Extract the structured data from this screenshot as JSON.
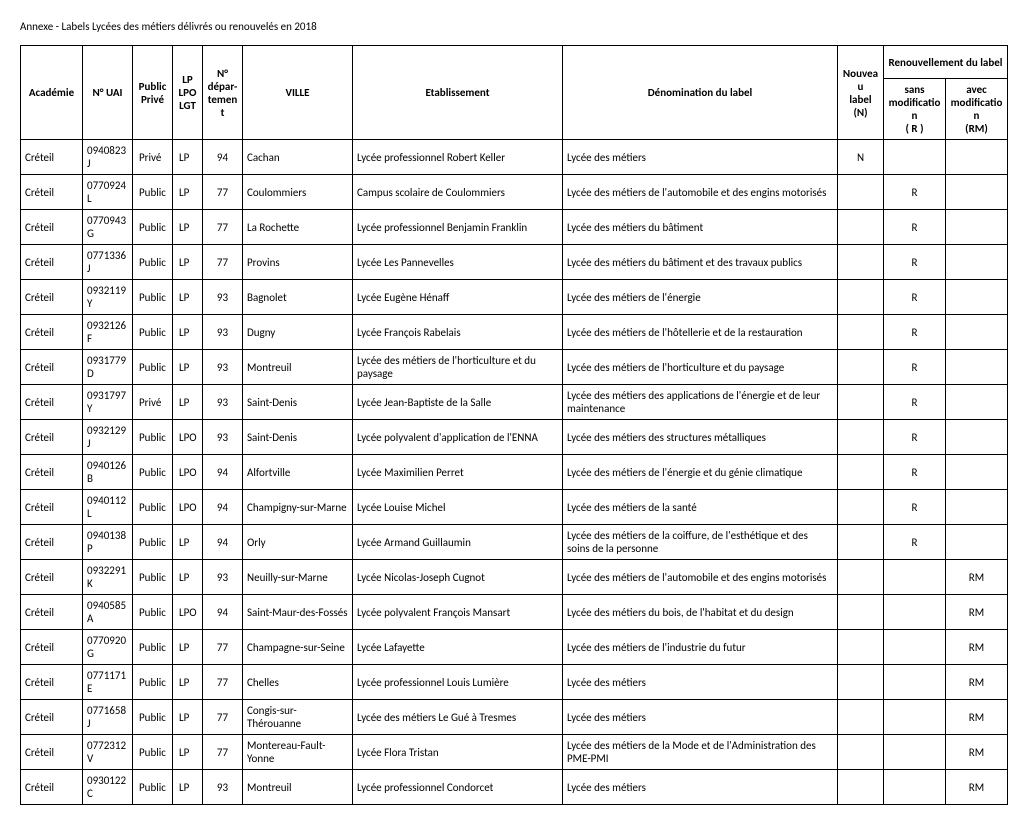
{
  "title": "Annexe - Labels Lycées des métiers délivrés ou renouvelés  en 2018",
  "columns": {
    "academie": "Académie",
    "uai": "N° UAI",
    "pubpriv": "Public\nPrivé",
    "type": "LP\nLPO\nLGT",
    "dept": "N°\ndépar-\ntement",
    "ville": "VILLE",
    "etab": "Etablissement",
    "denom": "Dénomination du label",
    "nouveau": "Nouveau\nlabel\n(N)",
    "renouv": "Renouvellement du label",
    "sans": "sans\nmodification\n( R )",
    "avec": "avec\nmodification\n(RM)"
  },
  "rows": [
    {
      "academie": "Créteil",
      "uai": "0940823J",
      "pubpriv": "Privé",
      "type": "LP",
      "dept": "94",
      "ville": "Cachan",
      "etab": "Lycée professionnel Robert Keller",
      "denom": "Lycée des métiers",
      "n": "N",
      "r": "",
      "rm": ""
    },
    {
      "academie": "Créteil",
      "uai": "0770924L",
      "pubpriv": "Public",
      "type": "LP",
      "dept": "77",
      "ville": "Coulommiers",
      "etab": "Campus scolaire de Coulommiers",
      "denom": "Lycée des métiers de l'automobile et des engins motorisés",
      "n": "",
      "r": "R",
      "rm": ""
    },
    {
      "academie": "Créteil",
      "uai": "0770943G",
      "pubpriv": "Public",
      "type": "LP",
      "dept": "77",
      "ville": "La Rochette",
      "etab": "Lycée professionnel  Benjamin Franklin",
      "denom": "Lycée des métiers du bâtiment",
      "n": "",
      "r": "R",
      "rm": ""
    },
    {
      "academie": "Créteil",
      "uai": "0771336J",
      "pubpriv": "Public",
      "type": "LP",
      "dept": "77",
      "ville": "Provins",
      "etab": "Lycée Les Pannevelles",
      "denom": "Lycée des métiers du bâtiment et des travaux publics",
      "n": "",
      "r": "R",
      "rm": ""
    },
    {
      "academie": "Créteil",
      "uai": "0932119Y",
      "pubpriv": "Public",
      "type": "LP",
      "dept": "93",
      "ville": "Bagnolet",
      "etab": "Lycée Eugène Hénaff",
      "denom": "Lycée des métiers de l'énergie",
      "n": "",
      "r": "R",
      "rm": ""
    },
    {
      "academie": "Créteil",
      "uai": "0932126F",
      "pubpriv": "Public",
      "type": "LP",
      "dept": "93",
      "ville": "Dugny",
      "etab": "Lycée François Rabelais",
      "denom": "Lycée des métiers de l'hôtellerie et de la restauration",
      "n": "",
      "r": "R",
      "rm": ""
    },
    {
      "academie": "Créteil",
      "uai": "0931779D",
      "pubpriv": "Public",
      "type": "LP",
      "dept": "93",
      "ville": "Montreuil",
      "etab": "Lycée des métiers de l'horticulture et du paysage",
      "denom": "Lycée des métiers de l'horticulture et du paysage",
      "n": "",
      "r": "R",
      "rm": ""
    },
    {
      "academie": "Créteil",
      "uai": "0931797Y",
      "pubpriv": "Privé",
      "type": "LP",
      "dept": "93",
      "ville": "Saint-Denis",
      "etab": "Lycée Jean-Baptiste de la Salle",
      "denom": "Lycée des métiers des applications de l'énergie et de leur maintenance",
      "n": "",
      "r": "R",
      "rm": ""
    },
    {
      "academie": "Créteil",
      "uai": "0932129J",
      "pubpriv": "Public",
      "type": "LPO",
      "dept": "93",
      "ville": "Saint-Denis",
      "etab": "Lycée polyvalent d'application de l'ENNA",
      "denom": "Lycée des métiers des structures métalliques",
      "n": "",
      "r": "R",
      "rm": ""
    },
    {
      "academie": "Créteil",
      "uai": "0940126B",
      "pubpriv": "Public",
      "type": "LPO",
      "dept": "94",
      "ville": "Alfortville",
      "etab": "Lycée Maximilien Perret",
      "denom": "Lycée des métiers de l'énergie et du génie climatique",
      "n": "",
      "r": "R",
      "rm": ""
    },
    {
      "academie": "Créteil",
      "uai": "0940112L",
      "pubpriv": "Public",
      "type": "LPO",
      "dept": "94",
      "ville": "Champigny-sur-Marne",
      "etab": "Lycée Louise Michel",
      "denom": "Lycée des métiers de la santé",
      "n": "",
      "r": "R",
      "rm": ""
    },
    {
      "academie": "Créteil",
      "uai": "0940138P",
      "pubpriv": "Public",
      "type": "LP",
      "dept": "94",
      "ville": "Orly",
      "etab": "Lycée Armand Guillaumin",
      "denom": "Lycée des métiers de la coiffure, de l'esthétique et des soins de la personne",
      "n": "",
      "r": "R",
      "rm": ""
    },
    {
      "academie": "Créteil",
      "uai": "0932291K",
      "pubpriv": "Public",
      "type": "LP",
      "dept": "93",
      "ville": "Neuilly-sur-Marne",
      "etab": "Lycée Nicolas-Joseph Cugnot",
      "denom": "Lycée des métiers de l'automobile et des engins motorisés",
      "n": "",
      "r": "",
      "rm": "RM"
    },
    {
      "academie": "Créteil",
      "uai": "0940585A",
      "pubpriv": "Public",
      "type": "LPO",
      "dept": "94",
      "ville": "Saint-Maur-des-Fossés",
      "etab": "Lycée polyvalent François Mansart",
      "denom": "Lycée des métiers du bois, de l'habitat et du design",
      "n": "",
      "r": "",
      "rm": "RM"
    },
    {
      "academie": "Créteil",
      "uai": "0770920G",
      "pubpriv": "Public",
      "type": "LP",
      "dept": "77",
      "ville": "Champagne-sur-Seine",
      "etab": "Lycée Lafayette",
      "denom": "Lycée des métiers de l'industrie du futur",
      "n": "",
      "r": "",
      "rm": "RM"
    },
    {
      "academie": "Créteil",
      "uai": "0771171E",
      "pubpriv": "Public",
      "type": "LP",
      "dept": "77",
      "ville": "Chelles",
      "etab": "Lycée professionnel Louis Lumière",
      "denom": "Lycée des métiers",
      "n": "",
      "r": "",
      "rm": "RM"
    },
    {
      "academie": "Créteil",
      "uai": "0771658J",
      "pubpriv": "Public",
      "type": "LP",
      "dept": "77",
      "ville": "Congis-sur-Thérouanne",
      "etab": "Lycée des métiers Le Gué à Tresmes",
      "denom": "Lycée des métiers",
      "n": "",
      "r": "",
      "rm": "RM"
    },
    {
      "academie": "Créteil",
      "uai": "0772312V",
      "pubpriv": "Public",
      "type": "LP",
      "dept": "77",
      "ville": "Montereau-Fault-Yonne",
      "etab": "Lycée Flora Tristan",
      "denom": "Lycée des métiers de la Mode et de l'Administration des PME-PMI",
      "n": "",
      "r": "",
      "rm": "RM"
    },
    {
      "academie": "Créteil",
      "uai": "0930122C",
      "pubpriv": "Public",
      "type": "LP",
      "dept": "93",
      "ville": "Montreuil",
      "etab": "Lycée professionnel Condorcet",
      "denom": "Lycée des métiers",
      "n": "",
      "r": "",
      "rm": "RM"
    }
  ],
  "colwidths": {
    "academie": 62,
    "uai": 50,
    "pubpriv": 40,
    "type": 30,
    "dept": 40,
    "ville": 110,
    "etab": 210,
    "denom": 275,
    "n": 46,
    "r": 62,
    "rm": 62
  }
}
